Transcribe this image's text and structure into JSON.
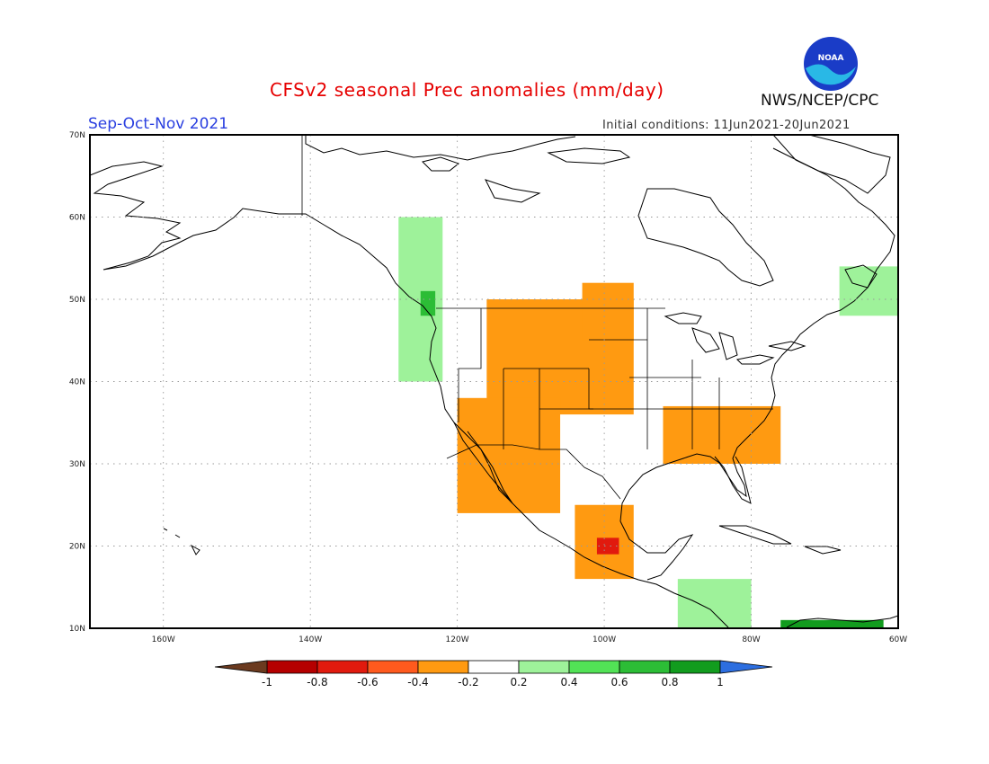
{
  "header": {
    "title": "CFSv2 seasonal Prec anomalies (mm/day)",
    "season": "Sep-Oct-Nov 2021",
    "initial_conditions": "Initial conditions: 11Jun2021-20Jun2021",
    "agency": "NWS/NCEP/CPC",
    "logo_text": "NOAA"
  },
  "map": {
    "lat_labels": [
      "70N",
      "60N",
      "50N",
      "40N",
      "30N",
      "20N",
      "10N"
    ],
    "lon_labels": [
      "160W",
      "140W",
      "120W",
      "100W",
      "80W",
      "60W"
    ]
  },
  "colorbar": {
    "labels": [
      "-1",
      "-0.8",
      "-0.6",
      "-0.4",
      "-0.2",
      "0.2",
      "0.4",
      "0.6",
      "0.8",
      "1"
    ],
    "colors": [
      "#6b3a1f",
      "#b50000",
      "#e11a0e",
      "#ff5a1e",
      "#ff9a11",
      "#ffffff",
      "#9ef29a",
      "#52e256",
      "#2cbd36",
      "#129c1e",
      "#2c6ee0"
    ]
  },
  "chart_data": {
    "type": "heatmap",
    "title": "CFSv2 seasonal Prec anomalies (mm/day)",
    "x_axis": {
      "range": [
        "170W",
        "60W"
      ],
      "ticks": [
        "160W",
        "140W",
        "120W",
        "100W",
        "80W",
        "60W"
      ]
    },
    "y_axis": {
      "range": [
        "10N",
        "70N"
      ],
      "ticks": [
        "10N",
        "20N",
        "30N",
        "40N",
        "50N",
        "60N",
        "70N"
      ]
    },
    "grid": true,
    "legend": "bottom",
    "levels": [
      -1,
      -0.8,
      -0.6,
      -0.4,
      -0.2,
      0.2,
      0.4,
      0.6,
      0.8,
      1
    ],
    "regions": [
      {
        "lon": [
          -116,
          -96
        ],
        "lat": [
          36,
          50
        ],
        "value": -0.3
      },
      {
        "lon": [
          -103,
          -96
        ],
        "lat": [
          45,
          52
        ],
        "value": -0.3
      },
      {
        "lon": [
          -120,
          -106
        ],
        "lat": [
          24,
          38
        ],
        "value": -0.3
      },
      {
        "lon": [
          -104,
          -96
        ],
        "lat": [
          16,
          25
        ],
        "value": -0.4
      },
      {
        "lon": [
          -101,
          -98
        ],
        "lat": [
          19,
          21
        ],
        "value": -0.7
      },
      {
        "lon": [
          -92,
          -76
        ],
        "lat": [
          30,
          37
        ],
        "value": -0.3
      },
      {
        "lon": [
          -128,
          -122
        ],
        "lat": [
          40,
          60
        ],
        "value": 0.3
      },
      {
        "lon": [
          -125,
          -123
        ],
        "lat": [
          48,
          51
        ],
        "value": 0.6
      },
      {
        "lon": [
          -68,
          -60
        ],
        "lat": [
          48,
          54
        ],
        "value": 0.3
      },
      {
        "lon": [
          -90,
          -80
        ],
        "lat": [
          10,
          16
        ],
        "value": 0.3
      },
      {
        "lon": [
          -76,
          -62
        ],
        "lat": [
          10,
          11
        ],
        "value": 0.9
      }
    ]
  }
}
